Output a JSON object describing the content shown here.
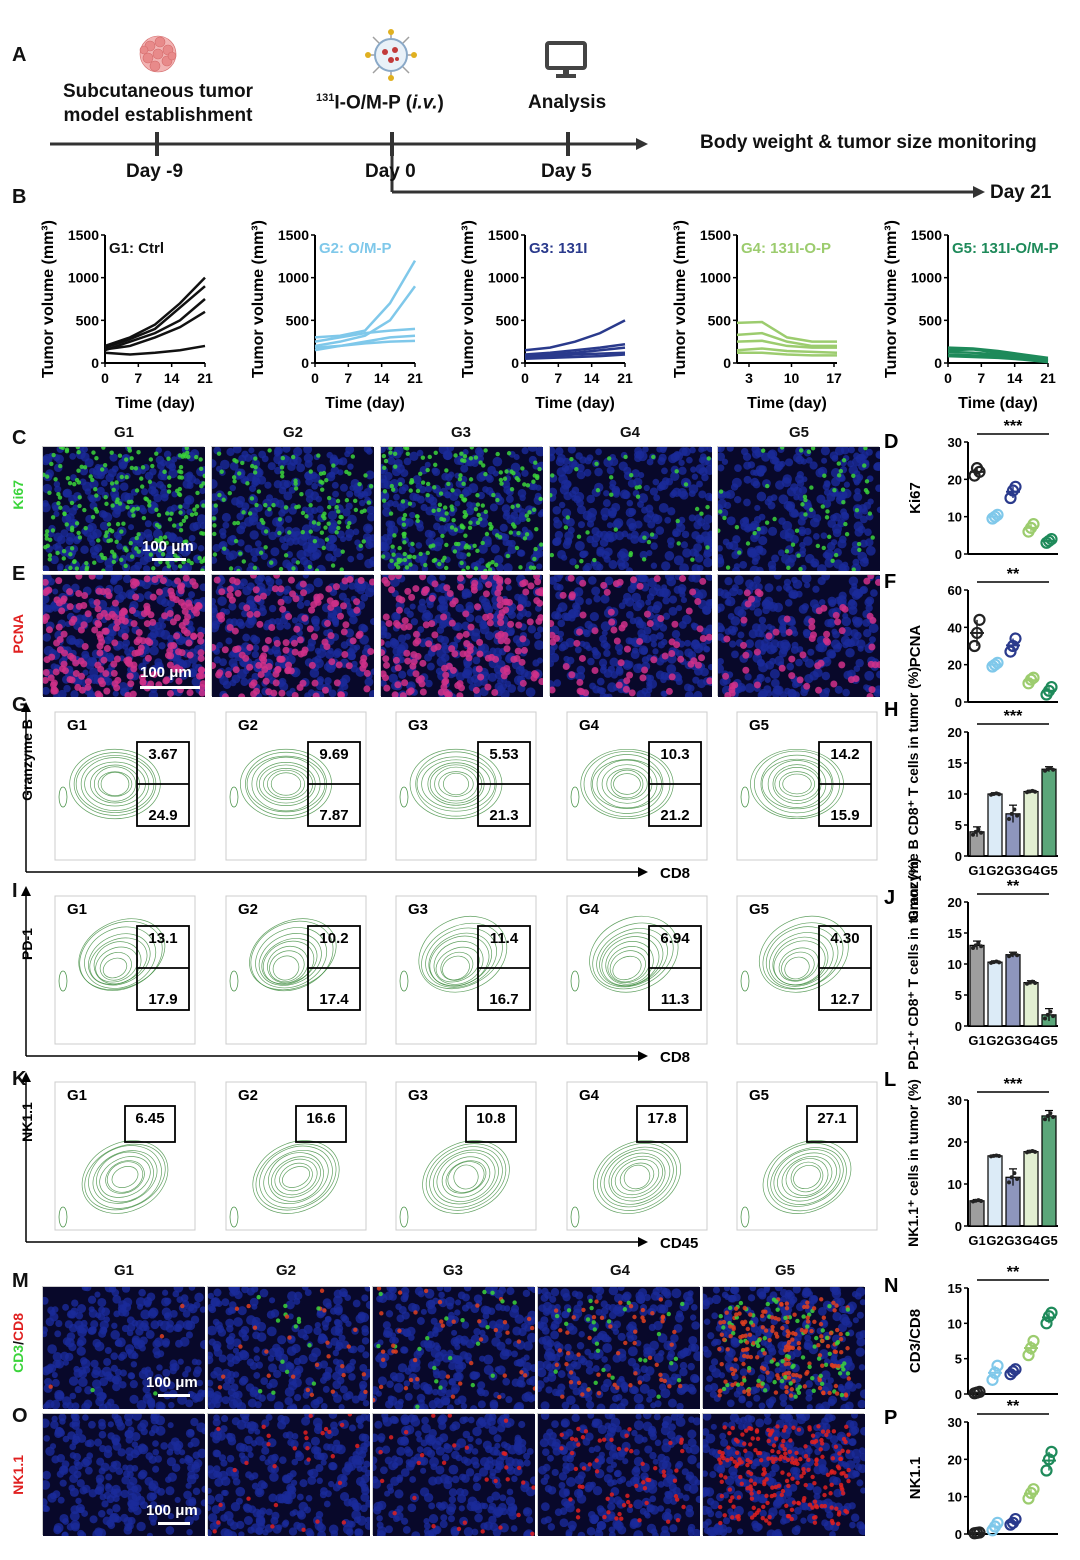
{
  "panelA": {
    "letter": "A",
    "steps": [
      {
        "label_line1": "Subcutaneous tumor",
        "label_line2": "model establishment",
        "day": "Day -9"
      },
      {
        "label": "131I-O/M-P (i.v.)",
        "day": "Day 0"
      },
      {
        "label": "Analysis",
        "day": "Day 5"
      }
    ],
    "monitoring": "Body weight & tumor size monitoring",
    "end_day": "Day 21",
    "sup131": "131",
    "step2_main": "I-O/M-P (",
    "step2_italic": "i.v.",
    "step2_close": ")"
  },
  "panelB": {
    "letter": "B",
    "ylabel": "Tumor volume (mm³)",
    "xlabel": "Time (day)",
    "groups": [
      {
        "title": "G1: Ctrl",
        "color": "#111111",
        "xticks": [
          "0",
          "7",
          "14",
          "21"
        ],
        "yticks": [
          "0",
          "500",
          "1000",
          "1500"
        ]
      },
      {
        "title": "G2: O/M-P",
        "color": "#7fc8ea",
        "xticks": [
          "0",
          "7",
          "14",
          "21"
        ],
        "yticks": [
          "0",
          "500",
          "1000",
          "1500"
        ]
      },
      {
        "title": "G3: 131I",
        "color": "#2a3a8c",
        "xticks": [
          "0",
          "7",
          "14",
          "21"
        ],
        "yticks": [
          "0",
          "500",
          "1000",
          "1500"
        ]
      },
      {
        "title": "G4: 131I-O-P",
        "color": "#9ccc6e",
        "xticks": [
          "3",
          "10",
          "17"
        ],
        "yticks": [
          "0",
          "500",
          "1000",
          "1500"
        ]
      },
      {
        "title": "G5: 131I-O/M-P",
        "color": "#1e8a5a",
        "xticks": [
          "0",
          "7",
          "14",
          "21"
        ],
        "yticks": [
          "0",
          "500",
          "1000",
          "1500"
        ]
      }
    ]
  },
  "groupsHeader": [
    "G1",
    "G2",
    "G3",
    "G4",
    "G5"
  ],
  "panelC": {
    "letter": "C",
    "stain": "Ki67",
    "scale": "100 μm"
  },
  "panelE": {
    "letter": "E",
    "stain": "PCNA",
    "scale": "100 μm"
  },
  "panelM": {
    "letter": "M",
    "stain": "CD3/CD8",
    "stain_a": "CD3",
    "stain_sep": "/",
    "stain_b": "CD8",
    "scale": "100 μm"
  },
  "panelO": {
    "letter": "O",
    "stain": "NK1.1",
    "scale": "100 μm"
  },
  "panelG": {
    "letter": "G",
    "yaxis": "Granzyme B",
    "xaxis": "CD8",
    "groups": [
      "G1",
      "G2",
      "G3",
      "G4",
      "G5"
    ],
    "top": [
      "3.67",
      "9.69",
      "5.53",
      "10.3",
      "14.2"
    ],
    "bottom": [
      "24.9",
      "7.87",
      "21.3",
      "21.2",
      "15.9"
    ]
  },
  "panelI": {
    "letter": "I",
    "yaxis": "PD-1",
    "xaxis": "CD8",
    "groups": [
      "G1",
      "G2",
      "G3",
      "G4",
      "G5"
    ],
    "top": [
      "13.1",
      "10.2",
      "11.4",
      "6.94",
      "4.30"
    ],
    "bottom": [
      "17.9",
      "17.4",
      "16.7",
      "11.3",
      "12.7"
    ]
  },
  "panelK": {
    "letter": "K",
    "yaxis": "NK1.1",
    "xaxis": "CD45",
    "groups": [
      "G1",
      "G2",
      "G3",
      "G4",
      "G5"
    ],
    "values": [
      "6.45",
      "16.6",
      "10.8",
      "17.8",
      "27.1"
    ]
  },
  "chart_data": [
    {
      "id": "D",
      "type": "scatter",
      "ylabel": "Ki67",
      "ylim": [
        0,
        30
      ],
      "yticks": [
        "0",
        "10",
        "20",
        "30"
      ],
      "sig": "***",
      "categories": [
        "G1",
        "G2",
        "G3",
        "G4",
        "G5"
      ],
      "values": [
        [
          21,
          23,
          22
        ],
        [
          9.5,
          10,
          10.5
        ],
        [
          15,
          17,
          18
        ],
        [
          6,
          7,
          8
        ],
        [
          3,
          3.5,
          4
        ]
      ],
      "colors": [
        "#222222",
        "#7fc8ea",
        "#2a3a8c",
        "#9ccc6e",
        "#1e8a5a"
      ]
    },
    {
      "id": "F",
      "type": "scatter",
      "ylabel": "PCNA",
      "ylim": [
        0,
        60
      ],
      "yticks": [
        "0",
        "20",
        "40",
        "60"
      ],
      "sig": "**",
      "categories": [
        "G1",
        "G2",
        "G3",
        "G4",
        "G5"
      ],
      "values": [
        [
          30,
          37,
          44
        ],
        [
          19,
          20,
          21
        ],
        [
          27,
          30,
          34
        ],
        [
          10,
          12,
          13
        ],
        [
          4,
          6,
          8
        ]
      ],
      "colors": [
        "#222222",
        "#7fc8ea",
        "#2a3a8c",
        "#9ccc6e",
        "#1e8a5a"
      ]
    },
    {
      "id": "H",
      "type": "bar",
      "ylabel": "Granzyme B CD8⁺ T cells in tumor (%)",
      "ylim": [
        0,
        20
      ],
      "yticks": [
        "0",
        "5",
        "10",
        "15",
        "20"
      ],
      "sig": "***",
      "categories": [
        "G1",
        "G2",
        "G3",
        "G4",
        "G5"
      ],
      "values": [
        3.9,
        10.0,
        6.8,
        10.4,
        14.0
      ],
      "errors": [
        0.8,
        0.2,
        1.4,
        0.2,
        0.4
      ],
      "colors": [
        "#9e9e9e",
        "#dcebf7",
        "#8e96bd",
        "#e2efd2",
        "#5ba67a"
      ]
    },
    {
      "id": "J",
      "type": "bar",
      "ylabel": "PD-1⁺ CD8⁺ T cells in tumor (%)",
      "ylim": [
        0,
        20
      ],
      "yticks": [
        "0",
        "5",
        "10",
        "15",
        "20"
      ],
      "sig": "**",
      "categories": [
        "G1",
        "G2",
        "G3",
        "G4",
        "G5"
      ],
      "values": [
        13.0,
        10.3,
        11.5,
        7.0,
        1.8
      ],
      "errors": [
        0.7,
        0.2,
        0.4,
        0.3,
        1.0
      ],
      "colors": [
        "#9e9e9e",
        "#dcebf7",
        "#8e96bd",
        "#e2efd2",
        "#5ba67a"
      ]
    },
    {
      "id": "L",
      "type": "bar",
      "ylabel": "NK1.1⁺ cells in tumor (%)",
      "ylim": [
        0,
        30
      ],
      "yticks": [
        "0",
        "10",
        "20",
        "30"
      ],
      "sig": "***",
      "categories": [
        "G1",
        "G2",
        "G3",
        "G4",
        "G5"
      ],
      "values": [
        6.0,
        16.7,
        11.6,
        17.7,
        26.2
      ],
      "errors": [
        0.3,
        0.2,
        2.0,
        0.3,
        1.3
      ],
      "colors": [
        "#9e9e9e",
        "#dcebf7",
        "#8e96bd",
        "#e2efd2",
        "#5ba67a"
      ]
    },
    {
      "id": "N",
      "type": "scatter",
      "ylabel": "CD3/CD8",
      "ylim": [
        0,
        15
      ],
      "yticks": [
        "0",
        "5",
        "10",
        "15"
      ],
      "sig": "**",
      "categories": [
        "G1",
        "G2",
        "G3",
        "G4",
        "G5"
      ],
      "values": [
        [
          0.1,
          0.2,
          0.3
        ],
        [
          2,
          3,
          4
        ],
        [
          2.8,
          3.2,
          3.5
        ],
        [
          5.5,
          6.5,
          7.5
        ],
        [
          10,
          11,
          11.5
        ]
      ],
      "colors": [
        "#222222",
        "#7fc8ea",
        "#2a3a8c",
        "#9ccc6e",
        "#1e8a5a"
      ]
    },
    {
      "id": "P",
      "type": "scatter",
      "ylabel": "NK1.1",
      "ylim": [
        0,
        30
      ],
      "yticks": [
        "0",
        "10",
        "20",
        "30"
      ],
      "sig": "**",
      "categories": [
        "G1",
        "G2",
        "G3",
        "G4",
        "G5"
      ],
      "values": [
        [
          0.2,
          0.3,
          0.4
        ],
        [
          1,
          2,
          3
        ],
        [
          2.5,
          3,
          4
        ],
        [
          9.5,
          11,
          12
        ],
        [
          17,
          20,
          22
        ]
      ],
      "colors": [
        "#222222",
        "#7fc8ea",
        "#2a3a8c",
        "#9ccc6e",
        "#1e8a5a"
      ]
    }
  ],
  "panelLetters": {
    "D": "D",
    "F": "F",
    "H": "H",
    "J": "J",
    "L": "L",
    "N": "N",
    "P": "P"
  }
}
